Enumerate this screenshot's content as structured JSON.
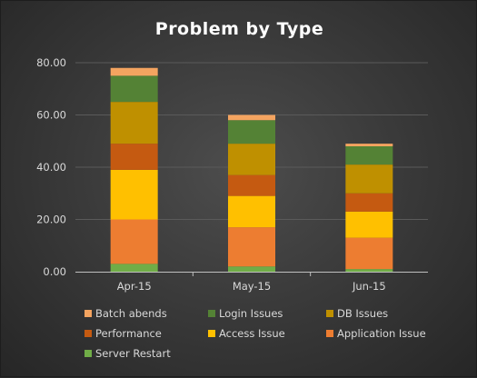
{
  "chart_data": {
    "type": "bar",
    "stacked": true,
    "title": "Problem by Type",
    "categories": [
      "Apr-15",
      "May-15",
      "Jun-15"
    ],
    "ylim": [
      0,
      80
    ],
    "yticks": [
      "0.00",
      "20.00",
      "40.00",
      "60.00",
      "80.00"
    ],
    "ytick_values": [
      0,
      20,
      40,
      60,
      80
    ],
    "grid": true,
    "legend_position": "bottom",
    "series": [
      {
        "name": "Server Restart",
        "color": "#70ad47",
        "values": [
          3,
          2,
          1
        ]
      },
      {
        "name": "Application Issue",
        "color": "#ed7d31",
        "values": [
          17,
          15,
          12
        ]
      },
      {
        "name": "Access Issue",
        "color": "#ffc000",
        "values": [
          19,
          12,
          10
        ]
      },
      {
        "name": "Performance",
        "color": "#c55a11",
        "values": [
          10,
          8,
          7
        ]
      },
      {
        "name": "DB Issues",
        "color": "#bf9000",
        "values": [
          16,
          12,
          11
        ]
      },
      {
        "name": "Login Issues",
        "color": "#548235",
        "values": [
          10,
          9,
          7
        ]
      },
      {
        "name": "Batch abends",
        "color": "#f4a460",
        "values": [
          3,
          2,
          1
        ]
      }
    ],
    "legend_order": [
      "Batch abends",
      "Login Issues",
      "DB Issues",
      "Performance",
      "Access Issue",
      "Application Issue",
      "Server Restart"
    ]
  }
}
